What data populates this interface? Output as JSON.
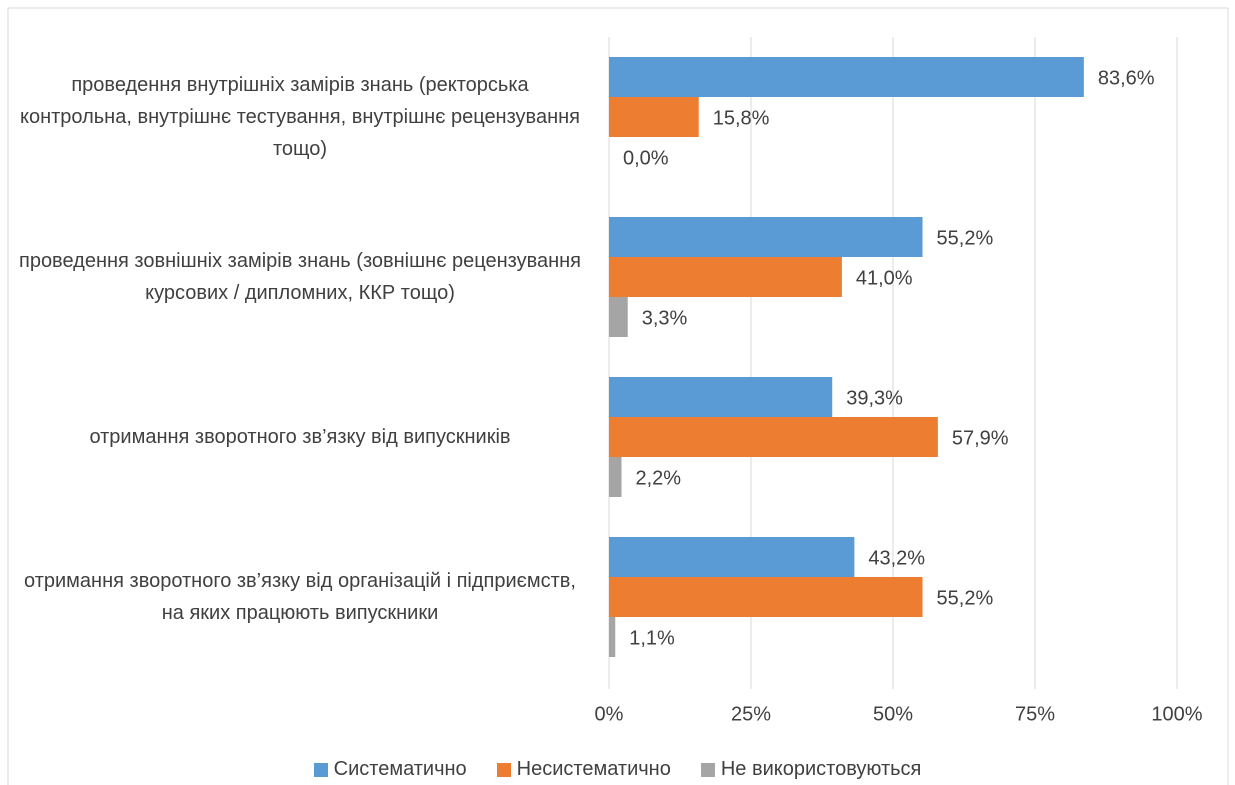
{
  "chart_data": {
    "type": "bar",
    "orientation": "horizontal",
    "categories": [
      "проведення внутрішніх замірів знань (ректорська контрольна, внутрішнє тестування, внутрішнє рецензування тощо)",
      "проведення зовнішніх замірів знань (зовнішнє рецензування курсових / дипломних, ККР тощо)",
      "отримання зворотного зв’язку від випускників",
      "отримання зворотного зв’язку від організацій і підприємств, на яких працюють випускники"
    ],
    "series": [
      {
        "name": "Систематично",
        "color": "#5b9bd5",
        "values": [
          83.6,
          55.2,
          39.3,
          43.2
        ],
        "value_labels": [
          "83,6%",
          "55,2%",
          "39,3%",
          "43,2%"
        ]
      },
      {
        "name": "Несистематично",
        "color": "#ed7d31",
        "values": [
          15.8,
          41.0,
          57.9,
          55.2
        ],
        "value_labels": [
          "15,8%",
          "41,0%",
          "57,9%",
          "55,2%"
        ]
      },
      {
        "name": "Не використовуються",
        "color": "#a5a5a5",
        "values": [
          0.0,
          3.3,
          2.2,
          1.1
        ],
        "value_labels": [
          "0,0%",
          "3,3%",
          "2,2%",
          "1,1%"
        ]
      }
    ],
    "xlim": [
      0,
      100
    ],
    "xticks": [
      {
        "value": 0,
        "label": "0%"
      },
      {
        "value": 25,
        "label": "25%"
      },
      {
        "value": 50,
        "label": "50%"
      },
      {
        "value": 75,
        "label": "75%"
      },
      {
        "value": 100,
        "label": "100%"
      }
    ],
    "grid": true,
    "legend": "bottom"
  }
}
